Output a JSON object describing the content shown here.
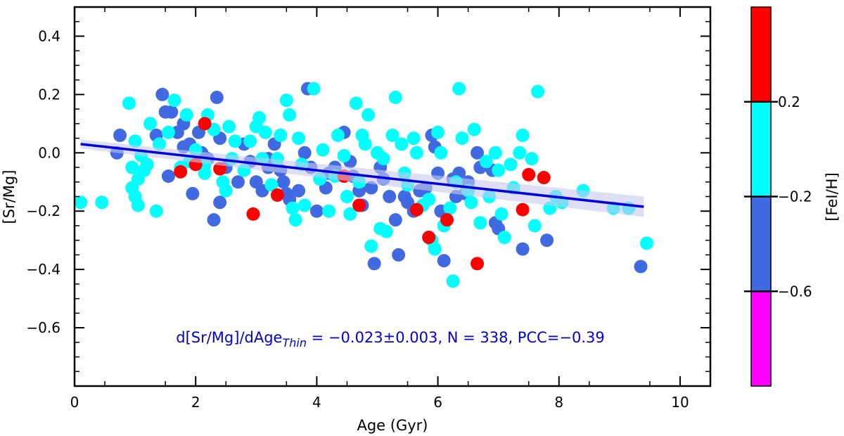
{
  "chart_data": {
    "type": "scatter",
    "xlabel": "Age (Gyr)",
    "ylabel": "[Sr/Mg]",
    "xlim": [
      0,
      10.5
    ],
    "ylim": [
      -0.8,
      0.5
    ],
    "x_ticks": [
      0,
      2,
      4,
      6,
      8,
      10
    ],
    "x_tick_labels": [
      "0",
      "2",
      "4",
      "6",
      "8",
      "10"
    ],
    "y_ticks": [
      -0.6,
      -0.4,
      -0.2,
      0.0,
      0.2,
      0.4
    ],
    "y_tick_labels": [
      "−0.6",
      "−0.4",
      "−0.2",
      "0.0",
      "0.2",
      "0.4"
    ],
    "annotation": {
      "prefix": "d[Sr/Mg]/dAge",
      "subscript": "Thin",
      "suffix": " = −0.023±0.003, N = 338, PCC=−0.39",
      "color": "#0000dd"
    },
    "fit": {
      "slope": -0.023,
      "x_range": [
        0.1,
        9.4
      ],
      "y_start": 0.03,
      "y_end": -0.185,
      "band_halfwidth_start": 0.015,
      "band_halfwidth_end": 0.035,
      "color": "#0000dd",
      "band_color": "#c8c8ee"
    },
    "colorbar": {
      "label": "[FeI/H]",
      "tick_labels": [
        "0.2",
        "−0.2",
        "−0.6"
      ],
      "tick_values": [
        0.2,
        -0.2,
        -0.6
      ],
      "range": [
        -1.0,
        0.6
      ],
      "segments": [
        {
          "min": 0.2,
          "max": 0.6,
          "color": "#ff0000"
        },
        {
          "min": -0.2,
          "max": 0.2,
          "color": "#00ffff"
        },
        {
          "min": -0.6,
          "max": -0.2,
          "color": "#4169e1"
        },
        {
          "min": -1.0,
          "max": -0.6,
          "color": "#ff00ff"
        }
      ]
    },
    "series": [
      {
        "name": "[FeI/H] -0.6 to -0.2",
        "color": "#4169e1",
        "points": [
          [
            0.75,
            0.06
          ],
          [
            0.7,
            0.0
          ],
          [
            1.45,
            0.2
          ],
          [
            1.5,
            0.14
          ],
          [
            1.6,
            0.14
          ],
          [
            1.8,
            0.1
          ],
          [
            1.7,
            0.07
          ],
          [
            1.35,
            0.06
          ],
          [
            1.55,
            -0.08
          ],
          [
            1.8,
            0.02
          ],
          [
            2.05,
            0.07
          ],
          [
            2.1,
            0.0
          ],
          [
            2.35,
            0.19
          ],
          [
            2.4,
            0.05
          ],
          [
            2.5,
            -0.05
          ],
          [
            2.7,
            -0.1
          ],
          [
            2.8,
            0.03
          ],
          [
            2.9,
            -0.03
          ],
          [
            3.0,
            -0.1
          ],
          [
            3.1,
            -0.13
          ],
          [
            3.2,
            -0.05
          ],
          [
            3.3,
            0.03
          ],
          [
            3.45,
            -0.1
          ],
          [
            3.5,
            -0.14
          ],
          [
            3.55,
            -0.16
          ],
          [
            3.7,
            -0.13
          ],
          [
            3.8,
            0.0
          ],
          [
            3.85,
            0.22
          ],
          [
            3.9,
            -0.05
          ],
          [
            4.0,
            -0.2
          ],
          [
            4.15,
            -0.12
          ],
          [
            4.3,
            -0.05
          ],
          [
            4.45,
            0.07
          ],
          [
            4.6,
            -0.08
          ],
          [
            4.75,
            -0.18
          ],
          [
            4.9,
            -0.12
          ],
          [
            4.95,
            -0.38
          ],
          [
            5.1,
            -0.09
          ],
          [
            5.2,
            -0.15
          ],
          [
            5.3,
            -0.23
          ],
          [
            5.35,
            -0.35
          ],
          [
            5.45,
            -0.15
          ],
          [
            5.6,
            -0.2
          ],
          [
            5.7,
            -0.13
          ],
          [
            5.9,
            0.06
          ],
          [
            5.95,
            0.02
          ],
          [
            6.0,
            -0.07
          ],
          [
            6.05,
            -0.2
          ],
          [
            6.1,
            -0.37
          ],
          [
            6.25,
            -0.09
          ],
          [
            6.3,
            -0.15
          ],
          [
            6.5,
            -0.1
          ],
          [
            6.65,
            0.0
          ],
          [
            6.7,
            -0.05
          ],
          [
            6.9,
            -0.06
          ],
          [
            6.95,
            -0.24
          ],
          [
            7.0,
            -0.26
          ],
          [
            7.4,
            -0.33
          ],
          [
            7.8,
            -0.3
          ],
          [
            9.35,
            -0.39
          ],
          [
            2.4,
            -0.17
          ],
          [
            2.3,
            -0.23
          ],
          [
            1.95,
            -0.14
          ],
          [
            3.4,
            -0.06
          ],
          [
            4.7,
            -0.13
          ],
          [
            5.8,
            -0.12
          ],
          [
            6.35,
            -0.07
          ],
          [
            3.2,
            -0.02
          ],
          [
            4.2,
            -0.07
          ],
          [
            5.5,
            -0.17
          ],
          [
            2.2,
            -0.02
          ],
          [
            1.9,
            0.03
          ],
          [
            6.45,
            -0.14
          ],
          [
            5.05,
            -0.05
          ],
          [
            4.55,
            -0.03
          ]
        ]
      },
      {
        "name": "[FeI/H] -0.2 to 0.2",
        "color": "#00ffff",
        "points": [
          [
            0.1,
            -0.17
          ],
          [
            0.45,
            -0.17
          ],
          [
            0.9,
            0.17
          ],
          [
            0.95,
            -0.05
          ],
          [
            1.0,
            0.04
          ],
          [
            1.05,
            -0.09
          ],
          [
            1.1,
            -0.01
          ],
          [
            1.2,
            -0.04
          ],
          [
            1.25,
            0.1
          ],
          [
            1.35,
            -0.2
          ],
          [
            1.4,
            0.03
          ],
          [
            1.55,
            0.07
          ],
          [
            1.65,
            0.18
          ],
          [
            1.75,
            -0.05
          ],
          [
            1.85,
            0.13
          ],
          [
            1.9,
            -0.03
          ],
          [
            2.0,
            0.01
          ],
          [
            2.15,
            -0.04
          ],
          [
            2.2,
            0.13
          ],
          [
            2.3,
            0.08
          ],
          [
            2.45,
            -0.1
          ],
          [
            2.6,
            -0.02
          ],
          [
            2.65,
            0.04
          ],
          [
            2.8,
            -0.06
          ],
          [
            2.9,
            0.04
          ],
          [
            3.0,
            0.09
          ],
          [
            3.05,
            0.12
          ],
          [
            3.15,
            0.07
          ],
          [
            3.25,
            -0.11
          ],
          [
            3.4,
            0.06
          ],
          [
            3.5,
            0.18
          ],
          [
            3.55,
            0.13
          ],
          [
            3.6,
            -0.19
          ],
          [
            3.65,
            -0.23
          ],
          [
            3.75,
            -0.04
          ],
          [
            3.8,
            -0.18
          ],
          [
            3.95,
            0.22
          ],
          [
            4.05,
            -0.09
          ],
          [
            4.1,
            0.01
          ],
          [
            4.2,
            -0.2
          ],
          [
            4.35,
            0.06
          ],
          [
            4.5,
            -0.15
          ],
          [
            4.55,
            -0.21
          ],
          [
            4.65,
            0.17
          ],
          [
            4.8,
            0.03
          ],
          [
            4.85,
            0.13
          ],
          [
            4.9,
            -0.32
          ],
          [
            5.0,
            0.0
          ],
          [
            5.05,
            -0.26
          ],
          [
            5.15,
            -0.27
          ],
          [
            5.25,
            0.06
          ],
          [
            5.3,
            0.19
          ],
          [
            5.4,
            0.03
          ],
          [
            5.5,
            -0.11
          ],
          [
            5.6,
            0.05
          ],
          [
            5.75,
            -0.18
          ],
          [
            5.85,
            -0.16
          ],
          [
            5.9,
            -0.3
          ],
          [
            5.95,
            -0.33
          ],
          [
            6.0,
            0.07
          ],
          [
            6.1,
            -0.25
          ],
          [
            6.2,
            -0.19
          ],
          [
            6.25,
            -0.44
          ],
          [
            6.35,
            0.22
          ],
          [
            6.4,
            0.05
          ],
          [
            6.5,
            -0.13
          ],
          [
            6.55,
            -0.17
          ],
          [
            6.6,
            0.08
          ],
          [
            6.7,
            -0.24
          ],
          [
            6.8,
            -0.03
          ],
          [
            6.85,
            -0.15
          ],
          [
            6.95,
            0.0
          ],
          [
            7.0,
            -0.06
          ],
          [
            7.05,
            -0.21
          ],
          [
            7.1,
            -0.29
          ],
          [
            7.2,
            -0.04
          ],
          [
            7.35,
            0.0
          ],
          [
            7.4,
            0.06
          ],
          [
            7.55,
            -0.02
          ],
          [
            7.6,
            -0.25
          ],
          [
            7.65,
            0.21
          ],
          [
            7.85,
            -0.19
          ],
          [
            7.95,
            -0.15
          ],
          [
            8.05,
            -0.17
          ],
          [
            8.4,
            -0.13
          ],
          [
            8.9,
            -0.19
          ],
          [
            9.15,
            -0.19
          ],
          [
            9.45,
            -0.31
          ],
          [
            1.0,
            -0.15
          ],
          [
            1.05,
            -0.18
          ],
          [
            0.95,
            -0.12
          ],
          [
            1.15,
            -0.06
          ],
          [
            2.55,
            0.09
          ],
          [
            3.1,
            -0.02
          ],
          [
            3.35,
            -0.02
          ],
          [
            4.3,
            -0.08
          ],
          [
            4.45,
            -0.01
          ],
          [
            4.7,
            -0.1
          ],
          [
            4.75,
            0.06
          ],
          [
            5.1,
            -0.02
          ],
          [
            5.45,
            -0.07
          ],
          [
            5.65,
            0.0
          ],
          [
            3.7,
            0.05
          ],
          [
            2.15,
            -0.07
          ],
          [
            2.5,
            -0.13
          ],
          [
            6.05,
            0.0
          ],
          [
            6.3,
            -0.1
          ],
          [
            7.25,
            -0.12
          ]
        ]
      },
      {
        "name": "[FeI/H] 0.2 to 0.6",
        "color": "#ff0000",
        "points": [
          [
            1.75,
            -0.065
          ],
          [
            2.0,
            -0.04
          ],
          [
            2.15,
            0.1
          ],
          [
            2.4,
            -0.055
          ],
          [
            2.95,
            -0.21
          ],
          [
            3.35,
            -0.145
          ],
          [
            4.45,
            -0.08
          ],
          [
            4.7,
            -0.18
          ],
          [
            5.65,
            -0.195
          ],
          [
            5.85,
            -0.29
          ],
          [
            6.15,
            -0.23
          ],
          [
            6.65,
            -0.38
          ],
          [
            7.4,
            -0.195
          ],
          [
            7.5,
            -0.075
          ],
          [
            7.75,
            -0.085
          ]
        ]
      }
    ]
  }
}
